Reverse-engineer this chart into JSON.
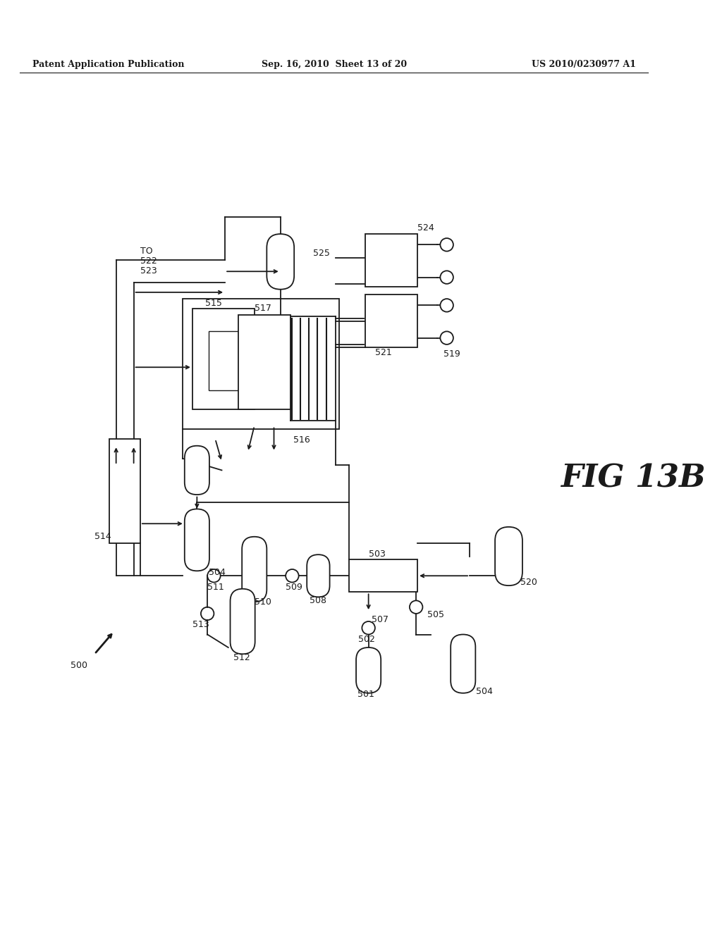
{
  "bg_color": "#ffffff",
  "header_left": "Patent Application Publication",
  "header_mid": "Sep. 16, 2010  Sheet 13 of 20",
  "header_right": "US 2010/0230977 A1",
  "fig_label": "FIG 13B",
  "black": "#1a1a1a"
}
